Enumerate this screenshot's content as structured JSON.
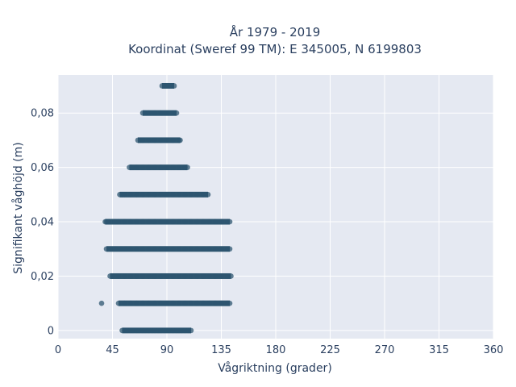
{
  "chart_data": {
    "type": "scatter",
    "title": [
      "År 1979 - 2019",
      "Koordinat (Sweref 99 TM): E 345005, N 6199803"
    ],
    "xlabel": "Vågriktning (grader)",
    "ylabel": "Signifikant våghöjd (m)",
    "xlim": [
      0,
      360
    ],
    "ylim": [
      -0.003,
      0.094
    ],
    "xticks": [
      0,
      45,
      90,
      135,
      180,
      225,
      270,
      315,
      360
    ],
    "xtick_labels": [
      "0",
      "45",
      "90",
      "135",
      "180",
      "225",
      "270",
      "315",
      "360"
    ],
    "yticks": [
      0,
      0.02,
      0.04,
      0.06,
      0.08
    ],
    "ytick_labels": [
      "0",
      "0,02",
      "0,04",
      "0,06",
      "0,08"
    ],
    "grid": true,
    "background": "#e5e9f2",
    "marker_color": "#2e5670",
    "series": [
      {
        "x": [
          53,
          55,
          57,
          60,
          62,
          65,
          67,
          70,
          72,
          75,
          78,
          80,
          83,
          85,
          88,
          90,
          92,
          95,
          98,
          100,
          102,
          105,
          108,
          110,
          36,
          50,
          55,
          60,
          65,
          70,
          75,
          80,
          85,
          90,
          95,
          100,
          105,
          110,
          115,
          120,
          125,
          130,
          135,
          140,
          142,
          43,
          45,
          50,
          55,
          60,
          65,
          70,
          75,
          80,
          85,
          90,
          95,
          100,
          105,
          110,
          115,
          120,
          125,
          130,
          135,
          140,
          143,
          40,
          44,
          48,
          52,
          56,
          60,
          65,
          70,
          75,
          80,
          85,
          90,
          95,
          100,
          105,
          110,
          115,
          120,
          125,
          130,
          135,
          140,
          142,
          39,
          40,
          42,
          47,
          50,
          55,
          60,
          65,
          70,
          75,
          80,
          85,
          90,
          95,
          100,
          105,
          110,
          115,
          120,
          125,
          130,
          135,
          140,
          142,
          51,
          53,
          55,
          60,
          65,
          70,
          75,
          80,
          85,
          90,
          95,
          100,
          105,
          110,
          115,
          120,
          124,
          59,
          61,
          65,
          70,
          75,
          80,
          85,
          90,
          95,
          100,
          105,
          107,
          66,
          68,
          70,
          75,
          80,
          85,
          90,
          95,
          100,
          101,
          70,
          72,
          75,
          80,
          85,
          90,
          95,
          98,
          86,
          88,
          90,
          93,
          96
        ],
        "y": [
          0,
          0,
          0,
          0,
          0,
          0,
          0,
          0,
          0,
          0,
          0,
          0,
          0,
          0,
          0,
          0,
          0,
          0,
          0,
          0,
          0,
          0,
          0,
          0,
          0.01,
          0.01,
          0.01,
          0.01,
          0.01,
          0.01,
          0.01,
          0.01,
          0.01,
          0.01,
          0.01,
          0.01,
          0.01,
          0.01,
          0.01,
          0.01,
          0.01,
          0.01,
          0.01,
          0.01,
          0.01,
          0.02,
          0.02,
          0.02,
          0.02,
          0.02,
          0.02,
          0.02,
          0.02,
          0.02,
          0.02,
          0.02,
          0.02,
          0.02,
          0.02,
          0.02,
          0.02,
          0.02,
          0.02,
          0.02,
          0.02,
          0.02,
          0.02,
          0.03,
          0.03,
          0.03,
          0.03,
          0.03,
          0.03,
          0.03,
          0.03,
          0.03,
          0.03,
          0.03,
          0.03,
          0.03,
          0.03,
          0.03,
          0.03,
          0.03,
          0.03,
          0.03,
          0.03,
          0.03,
          0.03,
          0.03,
          0.04,
          0.04,
          0.04,
          0.04,
          0.04,
          0.04,
          0.04,
          0.04,
          0.04,
          0.04,
          0.04,
          0.04,
          0.04,
          0.04,
          0.04,
          0.04,
          0.04,
          0.04,
          0.04,
          0.04,
          0.04,
          0.04,
          0.04,
          0.04,
          0.05,
          0.05,
          0.05,
          0.05,
          0.05,
          0.05,
          0.05,
          0.05,
          0.05,
          0.05,
          0.05,
          0.05,
          0.05,
          0.05,
          0.05,
          0.05,
          0.05,
          0.06,
          0.06,
          0.06,
          0.06,
          0.06,
          0.06,
          0.06,
          0.06,
          0.06,
          0.06,
          0.06,
          0.06,
          0.07,
          0.07,
          0.07,
          0.07,
          0.07,
          0.07,
          0.07,
          0.07,
          0.07,
          0.07,
          0.08,
          0.08,
          0.08,
          0.08,
          0.08,
          0.08,
          0.08,
          0.08,
          0.09,
          0.09,
          0.09,
          0.09,
          0.09
        ]
      }
    ]
  }
}
